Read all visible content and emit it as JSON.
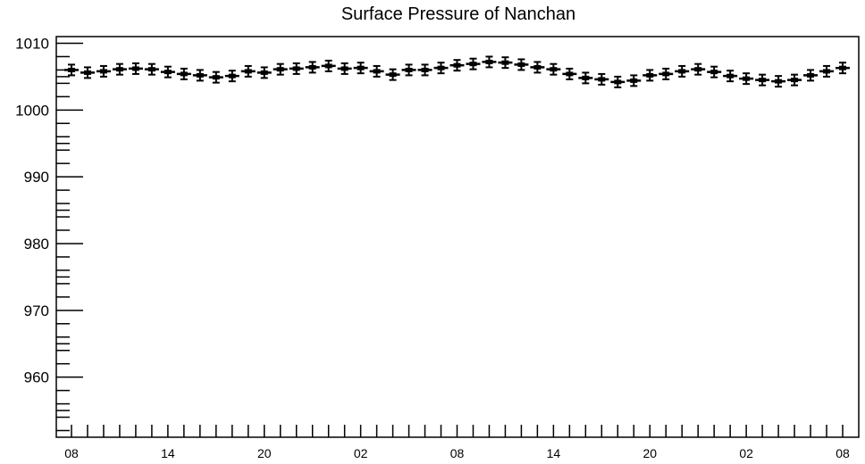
{
  "chart_data": {
    "type": "scatter",
    "title": "Surface Pressure of Nanchan",
    "xlabel": "",
    "ylabel": "",
    "xlim": [
      0,
      48
    ],
    "ylim": [
      951,
      1011
    ],
    "yticks": [
      960,
      970,
      980,
      990,
      1000,
      1010
    ],
    "xtick_labels": [
      "08",
      "14",
      "20",
      "02",
      "08",
      "14",
      "20",
      "02",
      "08"
    ],
    "xtick_positions": [
      0,
      6,
      12,
      18,
      24,
      30,
      36,
      42,
      48
    ],
    "error": 0.8,
    "marker_color": "#000000",
    "x": [
      0,
      1,
      2,
      3,
      4,
      5,
      6,
      7,
      8,
      9,
      10,
      11,
      12,
      13,
      14,
      15,
      16,
      17,
      18,
      19,
      20,
      21,
      22,
      23,
      24,
      25,
      26,
      27,
      28,
      29,
      30,
      31,
      32,
      33,
      34,
      35,
      36,
      37,
      38,
      39,
      40,
      41,
      42,
      43,
      44,
      45,
      46,
      47,
      48
    ],
    "y": [
      1006.0,
      1005.6,
      1005.8,
      1006.1,
      1006.2,
      1006.1,
      1005.7,
      1005.4,
      1005.2,
      1004.9,
      1005.1,
      1005.8,
      1005.6,
      1006.1,
      1006.2,
      1006.4,
      1006.6,
      1006.2,
      1006.3,
      1005.8,
      1005.3,
      1006.0,
      1006.0,
      1006.3,
      1006.7,
      1006.9,
      1007.2,
      1007.1,
      1006.8,
      1006.4,
      1006.1,
      1005.4,
      1004.8,
      1004.6,
      1004.2,
      1004.4,
      1005.2,
      1005.4,
      1005.8,
      1006.1,
      1005.7,
      1005.1,
      1004.7,
      1004.5,
      1004.3,
      1004.5,
      1005.2,
      1005.8,
      1006.3
    ]
  }
}
